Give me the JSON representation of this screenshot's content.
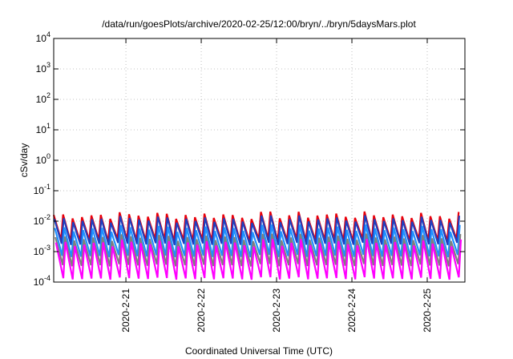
{
  "chart_data": {
    "type": "line",
    "title": "/data/run/goesPlots/archive/2020-02-25/12:00/bryn/../bryn/5daysMars.plot",
    "xlabel": "Coordinated Universal Time (UTC)",
    "ylabel": "cSv/day",
    "x_range": [
      "2020-02-20T01:00",
      "2020-02-25T12:00"
    ],
    "ylim": [
      0.0001,
      10000
    ],
    "y_scale": "log",
    "grid": true,
    "legend": "none",
    "x_ticks": [
      {
        "t": "2020-02-21",
        "label": "2020-2-21"
      },
      {
        "t": "2020-02-22",
        "label": "2020-2-22"
      },
      {
        "t": "2020-02-23",
        "label": "2020-2-23"
      },
      {
        "t": "2020-02-24",
        "label": "2020-2-24"
      },
      {
        "t": "2020-02-25",
        "label": "2020-2-25"
      }
    ],
    "y_ticks": [
      {
        "value": 0.0001,
        "base": "10",
        "exp": "-4"
      },
      {
        "value": 0.001,
        "base": "10",
        "exp": "-3"
      },
      {
        "value": 0.01,
        "base": "10",
        "exp": "-2"
      },
      {
        "value": 0.1,
        "base": "10",
        "exp": "-1"
      },
      {
        "value": 1,
        "base": "10",
        "exp": "0"
      },
      {
        "value": 10,
        "base": "10",
        "exp": "1"
      },
      {
        "value": 100,
        "base": "10",
        "exp": "2"
      },
      {
        "value": 1000,
        "base": "10",
        "exp": "3"
      },
      {
        "value": 10000,
        "base": "10",
        "exp": "4"
      }
    ],
    "sawtooth_period_hours": 3,
    "series": [
      {
        "color": "#e8000b",
        "peak": 0.016,
        "trough": 0.002
      },
      {
        "color": "#1f3fbf",
        "peak": 0.012,
        "trough": 0.0015
      },
      {
        "color": "#1e90ff",
        "peak": 0.006,
        "trough": 0.0006
      },
      {
        "color": "#7f7f7f",
        "peak": 0.003,
        "trough": 0.0003
      },
      {
        "color": "#ff00ff",
        "peak": 0.002,
        "trough": 0.00011
      }
    ]
  }
}
